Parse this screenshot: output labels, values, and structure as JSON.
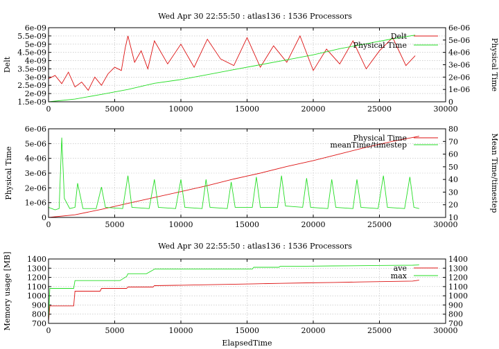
{
  "page": {
    "title_top": "Wed Apr 30 22:55:50 : atlas136 : 1536 Processors",
    "title_bottom": "Wed Apr 30 22:55:50 : atlas136 : 1536 Processors"
  },
  "colors": {
    "red": "#dd1111",
    "green": "#22dd22"
  },
  "chart_data": [
    {
      "type": "line",
      "title": "Wed Apr 30 22:55:50 : atlas136 : 1536 Processors",
      "xlabel": "",
      "ylabel": "Delt",
      "y2label": "Physical Time",
      "xlim": [
        0,
        30000
      ],
      "ylim": [
        1.5e-09,
        6e-09
      ],
      "y2lim": [
        0,
        6e-06
      ],
      "xticks": [
        "0",
        "5000",
        "10000",
        "15000",
        "20000",
        "25000",
        "30000"
      ],
      "yticks": [
        "1.5e-09",
        "2e-09",
        "2.5e-09",
        "3e-09",
        "3.5e-09",
        "4e-09",
        "4.5e-09",
        "5e-09",
        "5.5e-09",
        "6e-09"
      ],
      "y2ticks": [
        "0",
        "1e-06",
        "2e-06",
        "3e-06",
        "4e-06",
        "5e-06",
        "6e-06"
      ],
      "grid": true,
      "legend": "top-right",
      "series": [
        {
          "name": "Delt",
          "axis": "y",
          "color": "#dd1111",
          "x": [
            0,
            500,
            1000,
            1500,
            2000,
            2500,
            3000,
            3500,
            4000,
            4500,
            5000,
            5500,
            5800,
            6000,
            6500,
            7000,
            7500,
            8000,
            9000,
            10000,
            11000,
            12000,
            13000,
            14000,
            15000,
            16000,
            17000,
            18000,
            19000,
            20000,
            21000,
            22000,
            23000,
            24000,
            25000,
            26000,
            27000,
            27700
          ],
          "values": [
            2.9e-09,
            3.1e-09,
            2.6e-09,
            3.3e-09,
            2.4e-09,
            2.7e-09,
            2.2e-09,
            3e-09,
            2.5e-09,
            3.2e-09,
            3.6e-09,
            3.4e-09,
            4.8e-09,
            5.5e-09,
            3.9e-09,
            4.6e-09,
            3.5e-09,
            5.2e-09,
            3.8e-09,
            5e-09,
            3.6e-09,
            5.3e-09,
            4.1e-09,
            3.7e-09,
            5.4e-09,
            3.6e-09,
            4.9e-09,
            3.9e-09,
            5.5e-09,
            3.4e-09,
            4.7e-09,
            3.8e-09,
            5.2e-09,
            3.5e-09,
            4.6e-09,
            5.4e-09,
            3.7e-09,
            4.3e-09
          ]
        },
        {
          "name": "Physical Time",
          "axis": "y2",
          "color": "#22dd22",
          "x": [
            0,
            2000,
            4000,
            6000,
            8000,
            10000,
            12000,
            14000,
            16000,
            18000,
            20000,
            22000,
            24000,
            26000,
            27700
          ],
          "values": [
            0,
            2.2e-07,
            6e-07,
            1e-06,
            1.5e-06,
            1.8e-06,
            2.2e-06,
            2.6e-06,
            3e-06,
            3.4e-06,
            3.8e-06,
            4.3e-06,
            4.7e-06,
            5.1e-06,
            5.4e-06
          ]
        }
      ]
    },
    {
      "type": "line",
      "title": "",
      "xlabel": "",
      "ylabel": "Physical Time",
      "y2label": "Mean Time/timestep",
      "xlim": [
        0,
        30000
      ],
      "ylim": [
        0,
        6e-06
      ],
      "y2lim": [
        10,
        80
      ],
      "xticks": [
        "0",
        "5000",
        "10000",
        "15000",
        "20000",
        "25000",
        "30000"
      ],
      "yticks": [
        "0",
        "1e-06",
        "2e-06",
        "3e-06",
        "4e-06",
        "5e-06",
        "6e-06"
      ],
      "y2ticks": [
        "10",
        "20",
        "30",
        "40",
        "50",
        "60",
        "70",
        "80"
      ],
      "grid": true,
      "legend": "top-right",
      "series": [
        {
          "name": "Physical Time",
          "axis": "y",
          "color": "#dd1111",
          "x": [
            0,
            2000,
            4000,
            6000,
            8000,
            10000,
            12000,
            14000,
            16000,
            18000,
            20000,
            22000,
            24000,
            26000,
            28000
          ],
          "values": [
            0,
            1.8e-07,
            5.5e-07,
            9.5e-07,
            1.35e-06,
            1.75e-06,
            2.15e-06,
            2.6e-06,
            3e-06,
            3.45e-06,
            3.85e-06,
            4.3e-06,
            4.75e-06,
            5.15e-06,
            5.5e-06
          ]
        },
        {
          "name": "meanTime/timestep",
          "axis": "y2",
          "color": "#22dd22",
          "x": [
            0,
            500,
            800,
            1000,
            1200,
            1600,
            2000,
            2200,
            2600,
            3600,
            4000,
            4300,
            5600,
            6000,
            6300,
            7600,
            8000,
            8300,
            9600,
            10000,
            10300,
            11600,
            11900,
            12200,
            13500,
            13800,
            14100,
            15400,
            15700,
            16000,
            17300,
            17600,
            17900,
            19200,
            19500,
            19800,
            21100,
            21400,
            21700,
            23000,
            23300,
            23600,
            24900,
            25300,
            25600,
            26900,
            27300,
            27600,
            28000
          ],
          "values": [
            18,
            16,
            17,
            73,
            25,
            17,
            18,
            37,
            17,
            17,
            34,
            18,
            17,
            43,
            18,
            17,
            40,
            18,
            17,
            40,
            18,
            17,
            40,
            18,
            17,
            38,
            18,
            18,
            42,
            18,
            18,
            43,
            19,
            18,
            41,
            18,
            17,
            40,
            18,
            17,
            40,
            18,
            17,
            43,
            18,
            17,
            42,
            18,
            17
          ]
        }
      ]
    },
    {
      "type": "line",
      "title": "Wed Apr 30 22:55:50 : atlas136 : 1536 Processors",
      "xlabel": "ElapsedTime",
      "ylabel": "Memory usage [MB]",
      "y2label": "",
      "xlim": [
        0,
        30000
      ],
      "ylim": [
        700,
        1400
      ],
      "y2lim": [
        700,
        1400
      ],
      "xticks": [
        "0",
        "5000",
        "10000",
        "15000",
        "20000",
        "25000",
        "30000"
      ],
      "yticks": [
        "700",
        "800",
        "900",
        "1000",
        "1100",
        "1200",
        "1300",
        "1400"
      ],
      "y2ticks": [
        "700",
        "800",
        "900",
        "1000",
        "1100",
        "1200",
        "1300",
        "1400"
      ],
      "grid": true,
      "legend": "top-right",
      "series": [
        {
          "name": "ave",
          "axis": "y",
          "color": "#dd1111",
          "x": [
            0,
            100,
            1900,
            2000,
            3900,
            4000,
            5900,
            6000,
            7900,
            8000,
            10000,
            12000,
            15500,
            17500,
            19500,
            21500,
            23500,
            25500,
            27500,
            28000
          ],
          "values": [
            720,
            890,
            890,
            1050,
            1050,
            1080,
            1080,
            1095,
            1095,
            1110,
            1115,
            1120,
            1130,
            1135,
            1140,
            1145,
            1150,
            1155,
            1160,
            1170
          ]
        },
        {
          "name": "max",
          "axis": "y",
          "color": "#22dd22",
          "x": [
            0,
            100,
            1900,
            2000,
            5400,
            5900,
            6000,
            7400,
            7900,
            8000,
            15400,
            15500,
            17400,
            17500,
            19500,
            21500,
            23500,
            25500,
            27500,
            28000
          ],
          "values": [
            730,
            1080,
            1080,
            1165,
            1165,
            1210,
            1240,
            1240,
            1280,
            1290,
            1290,
            1310,
            1310,
            1320,
            1322,
            1325,
            1327,
            1330,
            1332,
            1335
          ]
        }
      ]
    }
  ]
}
